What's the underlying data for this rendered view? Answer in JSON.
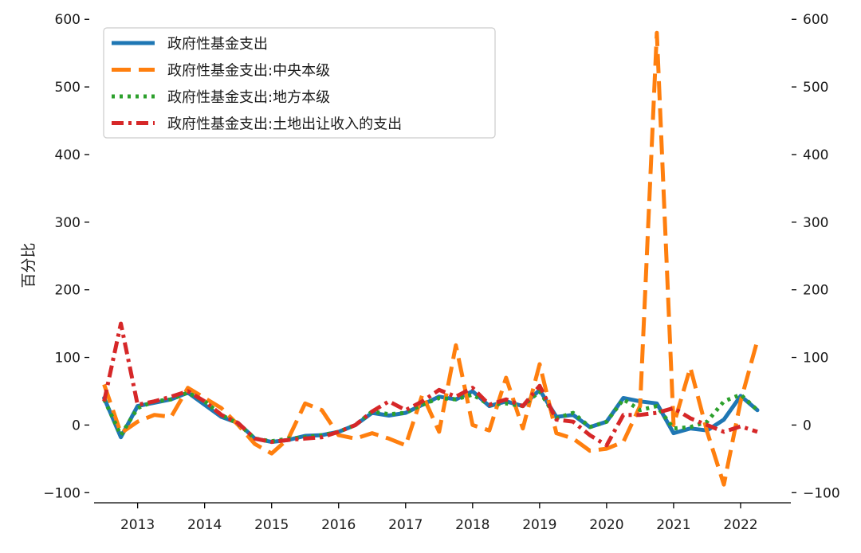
{
  "chart_data": {
    "type": "line",
    "ylabel": "百分比",
    "ylim": [
      -115,
      605
    ],
    "xlim": [
      2012.35,
      2022.75
    ],
    "yticks": [
      -100,
      0,
      100,
      200,
      300,
      400,
      500,
      600
    ],
    "ytick_labels": [
      "−100",
      "0",
      "100",
      "200",
      "300",
      "400",
      "500",
      "600"
    ],
    "xticks": [
      2013,
      2014,
      2015,
      2016,
      2017,
      2018,
      2019,
      2020,
      2021,
      2022
    ],
    "xtick_labels": [
      "2013",
      "2014",
      "2015",
      "2016",
      "2017",
      "2018",
      "2019",
      "2020",
      "2021",
      "2022"
    ],
    "right_axis": true,
    "legend_position": "top-left",
    "grid": false,
    "x": [
      2012.5,
      2012.75,
      2013.0,
      2013.25,
      2013.5,
      2013.75,
      2014.0,
      2014.25,
      2014.5,
      2014.75,
      2015.0,
      2015.25,
      2015.5,
      2015.75,
      2016.0,
      2016.25,
      2016.5,
      2016.75,
      2017.0,
      2017.25,
      2017.5,
      2017.75,
      2018.0,
      2018.25,
      2018.5,
      2018.75,
      2019.0,
      2019.25,
      2019.5,
      2019.75,
      2020.0,
      2020.25,
      2020.5,
      2020.75,
      2021.0,
      2021.25,
      2021.5,
      2021.75,
      2022.0,
      2022.25
    ],
    "series": [
      {
        "name": "政府性基金支出",
        "color": "#1f77b4",
        "style": "solid",
        "values": [
          40,
          -18,
          28,
          33,
          38,
          48,
          30,
          12,
          3,
          -20,
          -25,
          -22,
          -16,
          -15,
          -10,
          0,
          18,
          14,
          18,
          30,
          42,
          38,
          50,
          28,
          35,
          28,
          52,
          12,
          15,
          -3,
          5,
          40,
          35,
          32,
          -12,
          -5,
          -8,
          8,
          43,
          22
        ]
      },
      {
        "name": "政府性基金支出:中央本级",
        "color": "#ff7f0e",
        "style": "dashed",
        "values": [
          60,
          -12,
          5,
          15,
          12,
          55,
          40,
          25,
          0,
          -28,
          -42,
          -20,
          32,
          22,
          -15,
          -20,
          -12,
          -20,
          -30,
          45,
          -10,
          118,
          0,
          -8,
          70,
          -5,
          90,
          -12,
          -20,
          -38,
          -35,
          -25,
          28,
          580,
          0,
          85,
          -10,
          -88,
          35,
          125
        ]
      },
      {
        "name": "政府性基金支出:地方本级",
        "color": "#2ca02c",
        "style": "dotted",
        "values": [
          38,
          -15,
          25,
          35,
          38,
          48,
          35,
          15,
          2,
          -20,
          -24,
          -20,
          -18,
          -15,
          -10,
          0,
          20,
          16,
          18,
          30,
          40,
          38,
          45,
          30,
          32,
          28,
          50,
          10,
          18,
          -3,
          5,
          38,
          22,
          28,
          -5,
          -3,
          5,
          35,
          45,
          22
        ]
      },
      {
        "name": "政府性基金支出:土地出让收入的支出",
        "color": "#d62728",
        "style": "dashdot",
        "values": [
          35,
          150,
          30,
          35,
          42,
          50,
          35,
          15,
          3,
          -20,
          -25,
          -22,
          -20,
          -18,
          -10,
          0,
          20,
          35,
          22,
          35,
          52,
          42,
          55,
          30,
          38,
          28,
          58,
          8,
          5,
          -15,
          -30,
          15,
          15,
          18,
          25,
          10,
          0,
          -10,
          -2,
          -10
        ]
      }
    ]
  }
}
